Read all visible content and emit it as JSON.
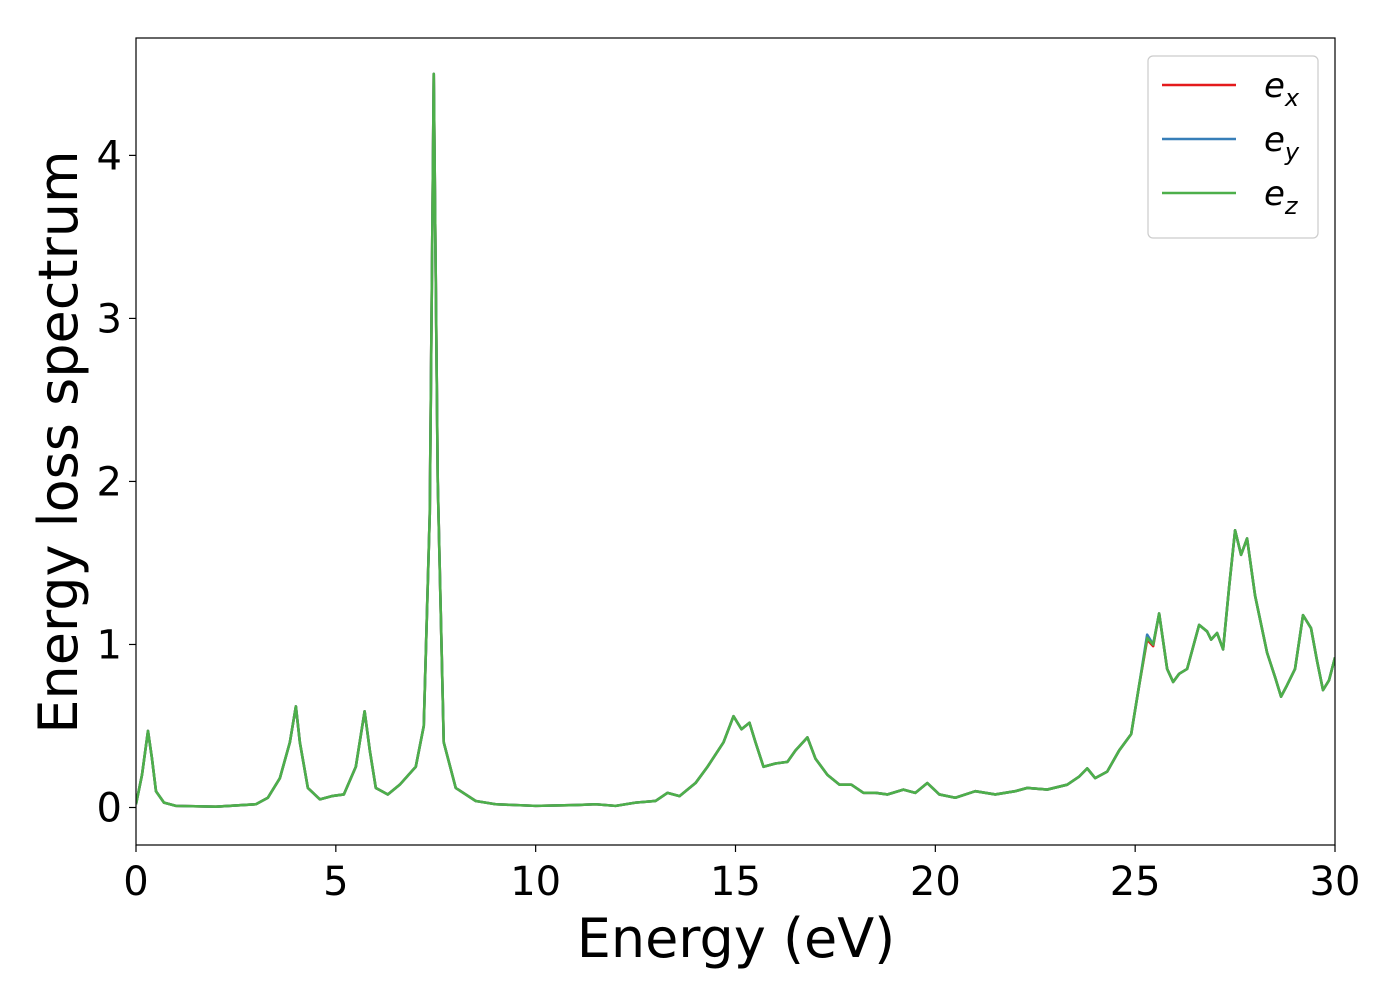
{
  "chart_data": {
    "type": "line",
    "xlabel": "Energy (eV)",
    "ylabel": "Energy loss spectrum",
    "xlim": [
      0,
      30
    ],
    "ylim": [
      -0.23,
      4.72
    ],
    "xticks": [
      0,
      5,
      10,
      15,
      20,
      25,
      30
    ],
    "yticks": [
      0,
      1,
      2,
      3,
      4
    ],
    "legend": "upper right",
    "x": [
      0,
      0.15,
      0.3,
      0.4,
      0.5,
      0.7,
      1,
      2,
      3,
      3.3,
      3.6,
      3.85,
      4.0,
      4.1,
      4.3,
      4.6,
      4.9,
      5.2,
      5.5,
      5.72,
      5.85,
      6.0,
      6.3,
      6.6,
      7.0,
      7.2,
      7.35,
      7.45,
      7.55,
      7.7,
      8.0,
      8.5,
      9,
      10,
      11,
      11.5,
      12,
      12.5,
      13,
      13.3,
      13.6,
      14,
      14.3,
      14.7,
      14.95,
      15.15,
      15.35,
      15.5,
      15.7,
      16,
      16.3,
      16.5,
      16.8,
      17,
      17.3,
      17.6,
      17.9,
      18.2,
      18.5,
      18.8,
      19.2,
      19.5,
      19.8,
      20.1,
      20.5,
      21,
      21.5,
      22,
      22.3,
      22.8,
      23.3,
      23.6,
      23.8,
      24,
      24.3,
      24.6,
      24.9,
      25.1,
      25.3,
      25.45,
      25.6,
      25.8,
      25.95,
      26.1,
      26.3,
      26.6,
      26.8,
      26.9,
      27.05,
      27.2,
      27.35,
      27.5,
      27.65,
      27.8,
      28.0,
      28.3,
      28.5,
      28.65,
      28.8,
      29,
      29.2,
      29.4,
      29.55,
      29.7,
      29.85,
      30
    ],
    "series": [
      {
        "name": "e_x",
        "color": "#e41a1c",
        "values": [
          0.02,
          0.2,
          0.47,
          0.3,
          0.1,
          0.03,
          0.01,
          0.005,
          0.02,
          0.06,
          0.18,
          0.4,
          0.62,
          0.4,
          0.12,
          0.05,
          0.07,
          0.08,
          0.25,
          0.59,
          0.35,
          0.12,
          0.08,
          0.14,
          0.25,
          0.5,
          1.8,
          4.5,
          2.0,
          0.4,
          0.12,
          0.04,
          0.02,
          0.01,
          0.015,
          0.02,
          0.01,
          0.03,
          0.04,
          0.09,
          0.07,
          0.15,
          0.25,
          0.4,
          0.56,
          0.48,
          0.52,
          0.4,
          0.25,
          0.27,
          0.28,
          0.35,
          0.43,
          0.3,
          0.2,
          0.14,
          0.14,
          0.09,
          0.09,
          0.08,
          0.11,
          0.09,
          0.15,
          0.08,
          0.06,
          0.1,
          0.08,
          0.1,
          0.12,
          0.11,
          0.14,
          0.19,
          0.24,
          0.18,
          0.22,
          0.35,
          0.45,
          0.75,
          1.03,
          0.99,
          1.19,
          0.85,
          0.77,
          0.82,
          0.85,
          1.12,
          1.08,
          1.03,
          1.07,
          0.97,
          1.35,
          1.7,
          1.55,
          1.65,
          1.3,
          0.95,
          0.8,
          0.68,
          0.75,
          0.85,
          1.18,
          1.1,
          0.9,
          0.72,
          0.78,
          0.92
        ]
      },
      {
        "name": "e_y",
        "color": "#377eb8",
        "values": [
          0.02,
          0.2,
          0.47,
          0.3,
          0.1,
          0.03,
          0.01,
          0.005,
          0.02,
          0.06,
          0.18,
          0.4,
          0.62,
          0.4,
          0.12,
          0.05,
          0.07,
          0.08,
          0.25,
          0.59,
          0.35,
          0.12,
          0.08,
          0.14,
          0.25,
          0.5,
          1.8,
          4.5,
          2.0,
          0.4,
          0.12,
          0.04,
          0.02,
          0.01,
          0.015,
          0.02,
          0.01,
          0.03,
          0.04,
          0.09,
          0.07,
          0.15,
          0.25,
          0.4,
          0.56,
          0.48,
          0.52,
          0.4,
          0.25,
          0.27,
          0.28,
          0.35,
          0.43,
          0.3,
          0.2,
          0.14,
          0.14,
          0.09,
          0.09,
          0.08,
          0.11,
          0.09,
          0.15,
          0.08,
          0.06,
          0.1,
          0.08,
          0.1,
          0.12,
          0.11,
          0.14,
          0.19,
          0.24,
          0.18,
          0.22,
          0.35,
          0.45,
          0.75,
          1.06,
          1.0,
          1.19,
          0.85,
          0.77,
          0.82,
          0.85,
          1.12,
          1.08,
          1.03,
          1.07,
          0.97,
          1.35,
          1.7,
          1.55,
          1.65,
          1.3,
          0.95,
          0.8,
          0.68,
          0.75,
          0.85,
          1.18,
          1.1,
          0.9,
          0.72,
          0.78,
          0.92
        ]
      },
      {
        "name": "e_z",
        "color": "#4daf4a",
        "values": [
          0.02,
          0.2,
          0.47,
          0.3,
          0.1,
          0.03,
          0.01,
          0.005,
          0.02,
          0.06,
          0.18,
          0.4,
          0.62,
          0.4,
          0.12,
          0.05,
          0.07,
          0.08,
          0.25,
          0.59,
          0.35,
          0.12,
          0.08,
          0.14,
          0.25,
          0.5,
          1.8,
          4.5,
          2.0,
          0.4,
          0.12,
          0.04,
          0.02,
          0.01,
          0.015,
          0.02,
          0.01,
          0.03,
          0.04,
          0.09,
          0.07,
          0.15,
          0.25,
          0.4,
          0.56,
          0.48,
          0.52,
          0.4,
          0.25,
          0.27,
          0.28,
          0.35,
          0.43,
          0.3,
          0.2,
          0.14,
          0.14,
          0.09,
          0.09,
          0.08,
          0.11,
          0.09,
          0.15,
          0.08,
          0.06,
          0.1,
          0.08,
          0.1,
          0.12,
          0.11,
          0.14,
          0.19,
          0.24,
          0.18,
          0.22,
          0.35,
          0.45,
          0.75,
          1.04,
          1.0,
          1.19,
          0.85,
          0.77,
          0.82,
          0.85,
          1.12,
          1.08,
          1.03,
          1.07,
          0.97,
          1.35,
          1.7,
          1.55,
          1.65,
          1.3,
          0.95,
          0.8,
          0.68,
          0.75,
          0.85,
          1.18,
          1.1,
          0.9,
          0.72,
          0.78,
          0.92
        ]
      }
    ]
  }
}
